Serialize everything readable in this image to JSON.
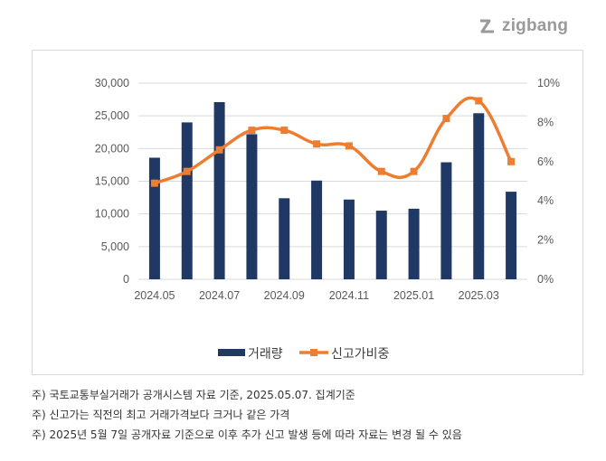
{
  "logo": {
    "text": "zigbang"
  },
  "chart_data": {
    "type": "bar+line",
    "categories": [
      "2024.05",
      "2024.06",
      "2024.07",
      "2024.08",
      "2024.09",
      "2024.10",
      "2024.11",
      "2024.12",
      "2025.01",
      "2025.02",
      "2025.03",
      "2025.04"
    ],
    "x_tick_labels": [
      "2024.05",
      "2024.07",
      "2024.09",
      "2024.11",
      "2025.01",
      "2025.03"
    ],
    "series": [
      {
        "name": "거래량",
        "type": "bar",
        "axis": "left",
        "color": "#203864",
        "values": [
          18600,
          24000,
          27100,
          22200,
          12400,
          15100,
          12200,
          10500,
          10800,
          17900,
          25400,
          13400
        ]
      },
      {
        "name": "신고가비중",
        "type": "line",
        "axis": "right",
        "color": "#ED7D31",
        "values": [
          4.9,
          5.5,
          6.6,
          7.6,
          7.6,
          6.9,
          6.8,
          5.5,
          5.5,
          8.2,
          9.1,
          6.0
        ]
      }
    ],
    "left_axis": {
      "ylim": [
        0,
        30000
      ],
      "ticks": [
        "0",
        "5,000",
        "10,000",
        "15,000",
        "20,000",
        "25,000",
        "30,000"
      ]
    },
    "right_axis": {
      "ylim": [
        0,
        10
      ],
      "ticks": [
        "0%",
        "2%",
        "4%",
        "6%",
        "8%",
        "10%"
      ]
    },
    "grid": true,
    "legend": "bottom"
  },
  "notes": [
    "주) 국토교통부실거래가 공개시스템 자료 기준, 2025.05.07. 집계기준",
    "주) 신고가는 직전의 최고 거래가격보다 크거나 같은 가격",
    "주) 2025년 5월 7일 공개자료 기준으로 이후 추가 신고 발생 등에 따라 자료는 변경 될 수 있음"
  ]
}
